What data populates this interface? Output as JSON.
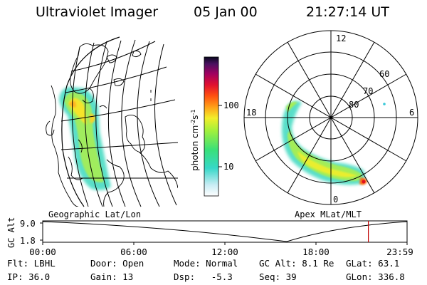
{
  "header": {
    "instrument": "Ultraviolet Imager",
    "date": "05 Jan 00",
    "time": "21:27:14 UT"
  },
  "left_map": {
    "caption": "Geographic Lat/Lon"
  },
  "right_map": {
    "caption": "Apex MLat/MLT",
    "mlt_labels": [
      "12",
      "18",
      "6",
      "0"
    ],
    "lat_labels": [
      "60",
      "70",
      "80"
    ]
  },
  "colorbar": {
    "unit_label": "photon cm",
    "unit_sup1": "-2",
    "unit_s": "s",
    "unit_sup2": "-1",
    "tick_labels": [
      "100",
      "10"
    ]
  },
  "timeline": {
    "ylabel": "GC Alt",
    "y_ticks": [
      "9.0",
      "1.8"
    ],
    "x_ticks": [
      "00:00",
      "06:00",
      "12:00",
      "18:00",
      "23:59"
    ],
    "y_values": [
      9.0,
      1.8
    ],
    "current_time_hours": 21.45,
    "marker_color": "#c00000"
  },
  "info": {
    "row1": [
      {
        "label": "Flt:",
        "value": "LBHL"
      },
      {
        "label": "Door:",
        "value": "Open"
      },
      {
        "label": "Mode:",
        "value": "Normal"
      },
      {
        "label": "GC Alt:",
        "value": "8.1 Re"
      },
      {
        "label": "GLat:",
        "value": "63.1"
      }
    ],
    "row2": [
      {
        "label": "IP:",
        "value": "36.0"
      },
      {
        "label": "Gain:",
        "value": "13"
      },
      {
        "label": "Dsp:",
        "value": "-5.3"
      },
      {
        "label": "Seq:",
        "value": "39"
      },
      {
        "label": "GLon:",
        "value": "336.8"
      }
    ]
  }
}
